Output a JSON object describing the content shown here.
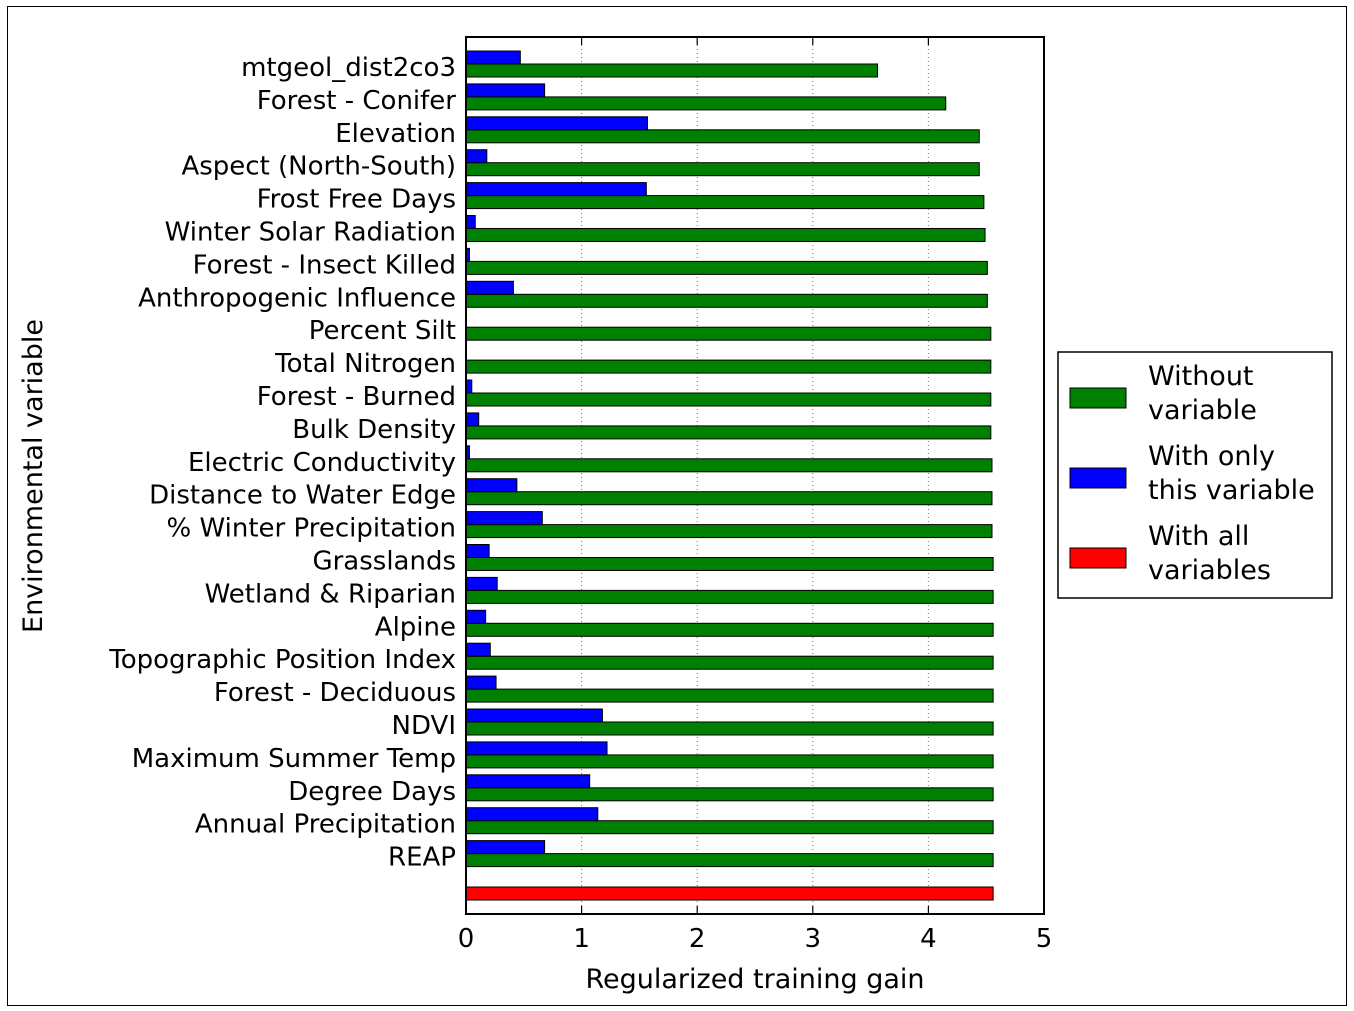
{
  "chart_data": {
    "type": "bar",
    "orientation": "horizontal",
    "xlabel": "Regularized training gain",
    "ylabel": "Environmental variable",
    "xlim": [
      0,
      5
    ],
    "xticks": [
      "0",
      "1",
      "2",
      "3",
      "4",
      "5"
    ],
    "grid": "x",
    "legend_position": "right",
    "categories": [
      "mtgeol_dist2co3",
      "Forest - Conifer",
      "Elevation",
      "Aspect (North-South)",
      "Frost Free Days",
      "Winter Solar Radiation",
      "Forest - Insect Killed",
      "Anthropogenic Influence",
      "Percent Silt",
      "Total Nitrogen",
      "Forest - Burned",
      "Bulk Density",
      "Electric Conductivity",
      "Distance to Water Edge",
      "% Winter Precipitation",
      "Grasslands",
      "Wetland & Riparian",
      "Alpine",
      "Topographic Position Index",
      "Forest - Deciduous",
      "NDVI",
      "Maximum Summer Temp",
      "Degree Days",
      "Annual Precipitation",
      "REAP"
    ],
    "series": [
      {
        "name": "Without variable",
        "color": "#008000",
        "values": [
          3.56,
          4.15,
          4.44,
          4.44,
          4.48,
          4.49,
          4.51,
          4.51,
          4.54,
          4.54,
          4.54,
          4.54,
          4.55,
          4.55,
          4.55,
          4.56,
          4.56,
          4.56,
          4.56,
          4.56,
          4.56,
          4.56,
          4.56,
          4.56,
          4.56
        ]
      },
      {
        "name": "With only this variable",
        "color": "#0000ff",
        "values": [
          0.47,
          0.68,
          1.57,
          0.18,
          1.56,
          0.08,
          0.03,
          0.41,
          0.0,
          0.0,
          0.05,
          0.11,
          0.03,
          0.44,
          0.66,
          0.2,
          0.27,
          0.17,
          0.21,
          0.26,
          1.18,
          1.22,
          1.07,
          1.14,
          0.68
        ]
      }
    ],
    "all_variables": {
      "name": "With all variables",
      "color": "#ff0000",
      "value": 4.56
    },
    "legend": [
      {
        "lines": [
          "Without",
          "variable"
        ],
        "color": "#008000"
      },
      {
        "lines": [
          "With only",
          "this variable"
        ],
        "color": "#0000ff"
      },
      {
        "lines": [
          "With all",
          "variables"
        ],
        "color": "#ff0000"
      }
    ]
  }
}
